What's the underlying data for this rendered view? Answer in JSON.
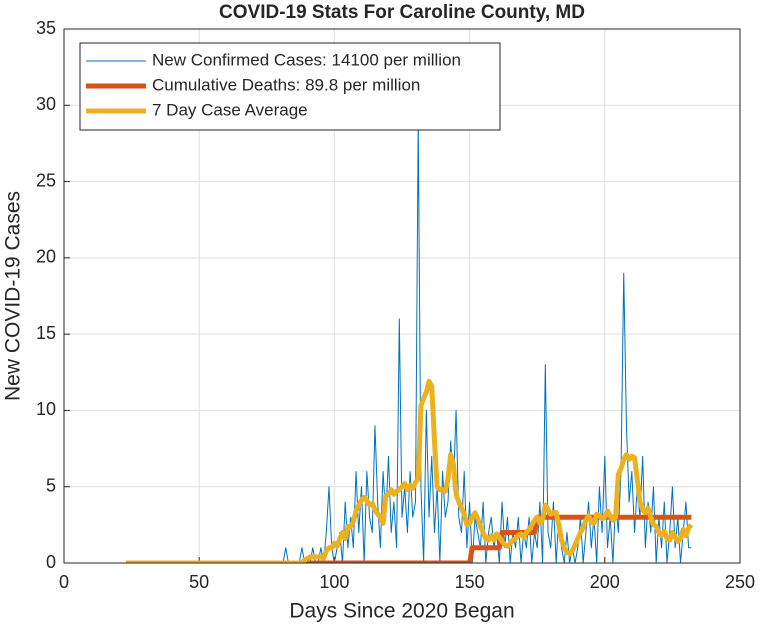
{
  "chart_data": {
    "type": "line",
    "title": "COVID-19 Stats For Caroline County, MD",
    "xlabel": "Days Since 2020 Began",
    "ylabel": "New COVID-19 Cases",
    "xlim": [
      0,
      250
    ],
    "xticks": [
      0,
      50,
      100,
      150,
      200,
      250
    ],
    "ylim": [
      0,
      35
    ],
    "yticks": [
      0,
      5,
      10,
      15,
      20,
      25,
      30,
      35
    ],
    "grid": true,
    "legend": "upper-left",
    "x": [
      23,
      24,
      25,
      26,
      27,
      28,
      29,
      30,
      31,
      32,
      33,
      34,
      35,
      36,
      37,
      38,
      39,
      40,
      41,
      42,
      43,
      44,
      45,
      46,
      47,
      48,
      49,
      50,
      51,
      52,
      53,
      54,
      55,
      56,
      57,
      58,
      59,
      60,
      61,
      62,
      63,
      64,
      65,
      66,
      67,
      68,
      69,
      70,
      71,
      72,
      73,
      74,
      75,
      76,
      77,
      78,
      79,
      80,
      81,
      82,
      83,
      84,
      85,
      86,
      87,
      88,
      89,
      90,
      91,
      92,
      93,
      94,
      95,
      96,
      97,
      98,
      99,
      100,
      101,
      102,
      103,
      104,
      105,
      106,
      107,
      108,
      109,
      110,
      111,
      112,
      113,
      114,
      115,
      116,
      117,
      118,
      119,
      120,
      121,
      122,
      123,
      124,
      125,
      126,
      127,
      128,
      129,
      130,
      131,
      132,
      133,
      134,
      135,
      136,
      137,
      138,
      139,
      140,
      141,
      142,
      143,
      144,
      145,
      146,
      147,
      148,
      149,
      150,
      151,
      152,
      153,
      154,
      155,
      156,
      157,
      158,
      159,
      160,
      161,
      162,
      163,
      164,
      165,
      166,
      167,
      168,
      169,
      170,
      171,
      172,
      173,
      174,
      175,
      176,
      177,
      178,
      179,
      180,
      181,
      182,
      183,
      184,
      185,
      186,
      187,
      188,
      189,
      190,
      191,
      192,
      193,
      194,
      195,
      196,
      197,
      198,
      199,
      200,
      201,
      202,
      203,
      204,
      205,
      206,
      207,
      208,
      209,
      210,
      211,
      212,
      213,
      214,
      215,
      216,
      217,
      218,
      219,
      220,
      221,
      222,
      223,
      224,
      225,
      226,
      227,
      228,
      229,
      230,
      231,
      232
    ],
    "series": [
      {
        "name": "New Confirmed Cases: 14100 per million",
        "color": "#0072BD",
        "width": 1,
        "values": [
          0,
          0,
          0,
          0,
          0,
          0,
          0,
          0,
          0,
          0,
          0,
          0,
          0,
          0,
          0,
          0,
          0,
          0,
          0,
          0,
          0,
          0,
          0,
          0,
          0,
          0,
          0,
          0,
          0,
          0,
          0,
          0,
          0,
          0,
          0,
          0,
          0,
          0,
          0,
          0,
          0,
          0,
          0,
          0,
          0,
          0,
          0,
          0,
          0,
          0,
          0,
          0,
          0,
          0,
          0,
          0,
          0,
          0,
          0,
          1,
          0,
          0,
          0,
          0,
          0,
          1,
          0,
          0,
          0,
          1,
          0,
          0,
          1,
          0,
          2,
          5,
          1,
          0,
          1,
          2,
          0,
          4,
          1,
          3,
          1,
          6,
          2,
          5,
          0,
          6,
          3,
          2,
          9,
          4,
          1,
          6,
          3,
          7,
          2,
          4,
          1,
          16,
          3,
          5,
          2,
          6,
          3,
          4,
          29,
          5,
          0,
          10,
          3,
          7,
          2,
          5,
          0,
          6,
          3,
          4,
          8,
          5,
          10,
          3,
          2,
          6,
          1,
          4,
          0,
          3,
          2,
          1,
          4,
          0,
          2,
          3,
          1,
          2,
          0,
          4,
          1,
          3,
          0,
          2,
          1,
          3,
          0,
          2,
          1,
          3,
          0,
          2,
          1,
          4,
          0,
          13,
          2,
          1,
          4,
          0,
          3,
          1,
          0,
          2,
          0,
          1,
          0,
          1,
          3,
          0,
          2,
          4,
          1,
          3,
          0,
          5,
          2,
          7,
          1,
          3,
          0,
          4,
          2,
          6,
          19,
          9,
          4,
          6,
          2,
          5,
          3,
          7,
          1,
          4,
          2,
          5,
          0,
          3,
          1,
          4,
          0,
          2,
          5,
          1,
          3,
          0,
          2,
          4,
          1,
          1
        ]
      },
      {
        "name": "Cumulative Deaths: 89.8 per million",
        "color": "#D95319",
        "width": 5,
        "values": [
          0,
          0,
          0,
          0,
          0,
          0,
          0,
          0,
          0,
          0,
          0,
          0,
          0,
          0,
          0,
          0,
          0,
          0,
          0,
          0,
          0,
          0,
          0,
          0,
          0,
          0,
          0,
          0,
          0,
          0,
          0,
          0,
          0,
          0,
          0,
          0,
          0,
          0,
          0,
          0,
          0,
          0,
          0,
          0,
          0,
          0,
          0,
          0,
          0,
          0,
          0,
          0,
          0,
          0,
          0,
          0,
          0,
          0,
          0,
          0,
          0,
          0,
          0,
          0,
          0,
          0,
          0,
          0,
          0,
          0,
          0,
          0,
          0,
          0,
          0,
          0,
          0,
          0,
          0,
          0,
          0,
          0,
          0,
          0,
          0,
          0,
          0,
          0,
          0,
          0,
          0,
          0,
          0,
          0,
          0,
          0,
          0,
          0,
          0,
          0,
          0,
          0,
          0,
          0,
          0,
          0,
          0,
          0,
          0,
          0,
          0,
          0,
          0,
          0,
          0,
          0,
          0,
          0,
          0,
          0,
          0,
          0,
          0,
          0,
          0,
          0,
          0,
          0,
          1,
          1,
          1,
          1,
          1,
          1,
          1,
          1,
          1,
          1,
          1,
          2,
          2,
          2,
          2,
          2,
          2,
          2,
          2,
          2,
          2,
          2,
          2,
          2,
          3,
          3,
          3,
          3,
          3,
          3,
          3,
          3,
          3,
          3,
          3,
          3,
          3,
          3,
          3,
          3,
          3,
          3,
          3,
          3,
          3,
          3,
          3,
          3,
          3,
          3,
          3,
          3,
          3,
          3,
          3,
          3,
          3,
          3,
          3,
          3,
          3,
          3,
          3,
          3,
          3,
          3,
          3,
          3,
          3,
          3,
          3,
          3,
          3,
          3,
          3,
          3,
          3,
          3,
          3,
          3,
          3,
          3
        ]
      },
      {
        "name": "7 Day Case Average",
        "color": "#EDB120",
        "width": 5,
        "values": [
          0,
          0,
          0,
          0,
          0,
          0,
          0,
          0,
          0,
          0,
          0,
          0,
          0,
          0,
          0,
          0,
          0,
          0,
          0,
          0,
          0,
          0,
          0,
          0,
          0,
          0,
          0,
          0,
          0,
          0,
          0,
          0,
          0,
          0,
          0,
          0,
          0,
          0,
          0,
          0,
          0,
          0,
          0,
          0,
          0,
          0,
          0,
          0,
          0,
          0,
          0,
          0,
          0,
          0,
          0,
          0,
          0,
          0,
          0,
          0,
          0,
          0,
          0,
          0,
          0,
          0,
          0.2,
          0.3,
          0.4,
          0.4,
          0.4,
          0.4,
          0.4,
          0.3,
          0.8,
          1,
          1,
          1.3,
          1.1,
          1.6,
          2,
          1.6,
          2.4,
          2.4,
          2.7,
          3.4,
          3.8,
          4.1,
          4.3,
          4.1,
          3.8,
          3.9,
          3.5,
          3.2,
          3,
          2.6,
          4.4,
          4.5,
          4.8,
          4.5,
          4.7,
          4.8,
          5,
          5.2,
          4.8,
          5.1,
          4.9,
          5.3,
          5.5,
          10.3,
          10.8,
          11.2,
          11.9,
          11.6,
          8,
          5,
          4.8,
          4.8,
          4.7,
          5.5,
          7.1,
          6.5,
          4.5,
          4,
          3.6,
          3.2,
          2.5,
          2.6,
          3,
          3.3,
          2.9,
          2.4,
          2,
          1.6,
          1.5,
          1.8,
          1.5,
          1.9,
          1.7,
          1.4,
          1.2,
          1.1,
          1.3,
          1.5,
          1.6,
          1.8,
          1.9,
          1.7,
          2,
          2.2,
          2.5,
          2.8,
          3,
          2.6,
          2.9,
          3.8,
          3.5,
          3.2,
          3.3,
          3.3,
          2.5,
          1.5,
          1,
          0.7,
          0.6,
          0.8,
          1.2,
          1.6,
          2,
          2.3,
          2.8,
          3.1,
          2.7,
          2.6,
          3.2,
          3.1,
          2.9,
          3,
          3.4,
          3.1,
          2.8,
          3,
          5.8,
          6.2,
          6.8,
          7.1,
          6.8,
          7,
          6.9,
          5.5,
          4,
          3.5,
          3.3,
          3.6,
          3,
          2.5,
          2.4,
          2,
          1.8,
          2.1,
          1.6,
          1.5,
          2,
          1.7,
          1.4,
          1.6,
          2.2,
          1.8,
          2.3,
          2.5
        ]
      }
    ]
  }
}
